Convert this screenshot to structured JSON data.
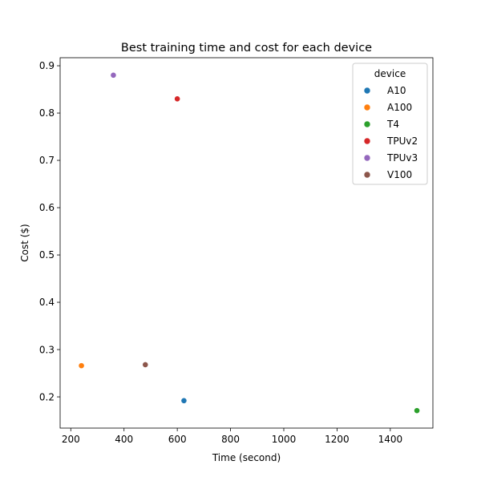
{
  "chart_data": {
    "type": "scatter",
    "title": "Best training time and cost for each device",
    "xlabel": "Time (second)",
    "ylabel": "Cost ($)",
    "xlim": [
      160,
      1560
    ],
    "ylim": [
      0.134,
      0.917
    ],
    "xticks": [
      200,
      400,
      600,
      800,
      1000,
      1200,
      1400
    ],
    "yticks": [
      0.2,
      0.3,
      0.4,
      0.5,
      0.6,
      0.7,
      0.8,
      0.9
    ],
    "grid": false,
    "legend": {
      "title": "device",
      "placement": "top-right"
    },
    "series": [
      {
        "name": "A10",
        "color": "#1f77b4",
        "points": [
          {
            "x": 625,
            "y": 0.192
          }
        ]
      },
      {
        "name": "A100",
        "color": "#ff7f0e",
        "points": [
          {
            "x": 240,
            "y": 0.266
          }
        ]
      },
      {
        "name": "T4",
        "color": "#2ca02c",
        "points": [
          {
            "x": 1500,
            "y": 0.171
          }
        ]
      },
      {
        "name": "TPUv2",
        "color": "#d62728",
        "points": [
          {
            "x": 600,
            "y": 0.83
          }
        ]
      },
      {
        "name": "TPUv3",
        "color": "#9467bd",
        "points": [
          {
            "x": 360,
            "y": 0.88
          }
        ]
      },
      {
        "name": "V100",
        "color": "#8c564b",
        "points": [
          {
            "x": 480,
            "y": 0.268
          }
        ]
      }
    ]
  }
}
